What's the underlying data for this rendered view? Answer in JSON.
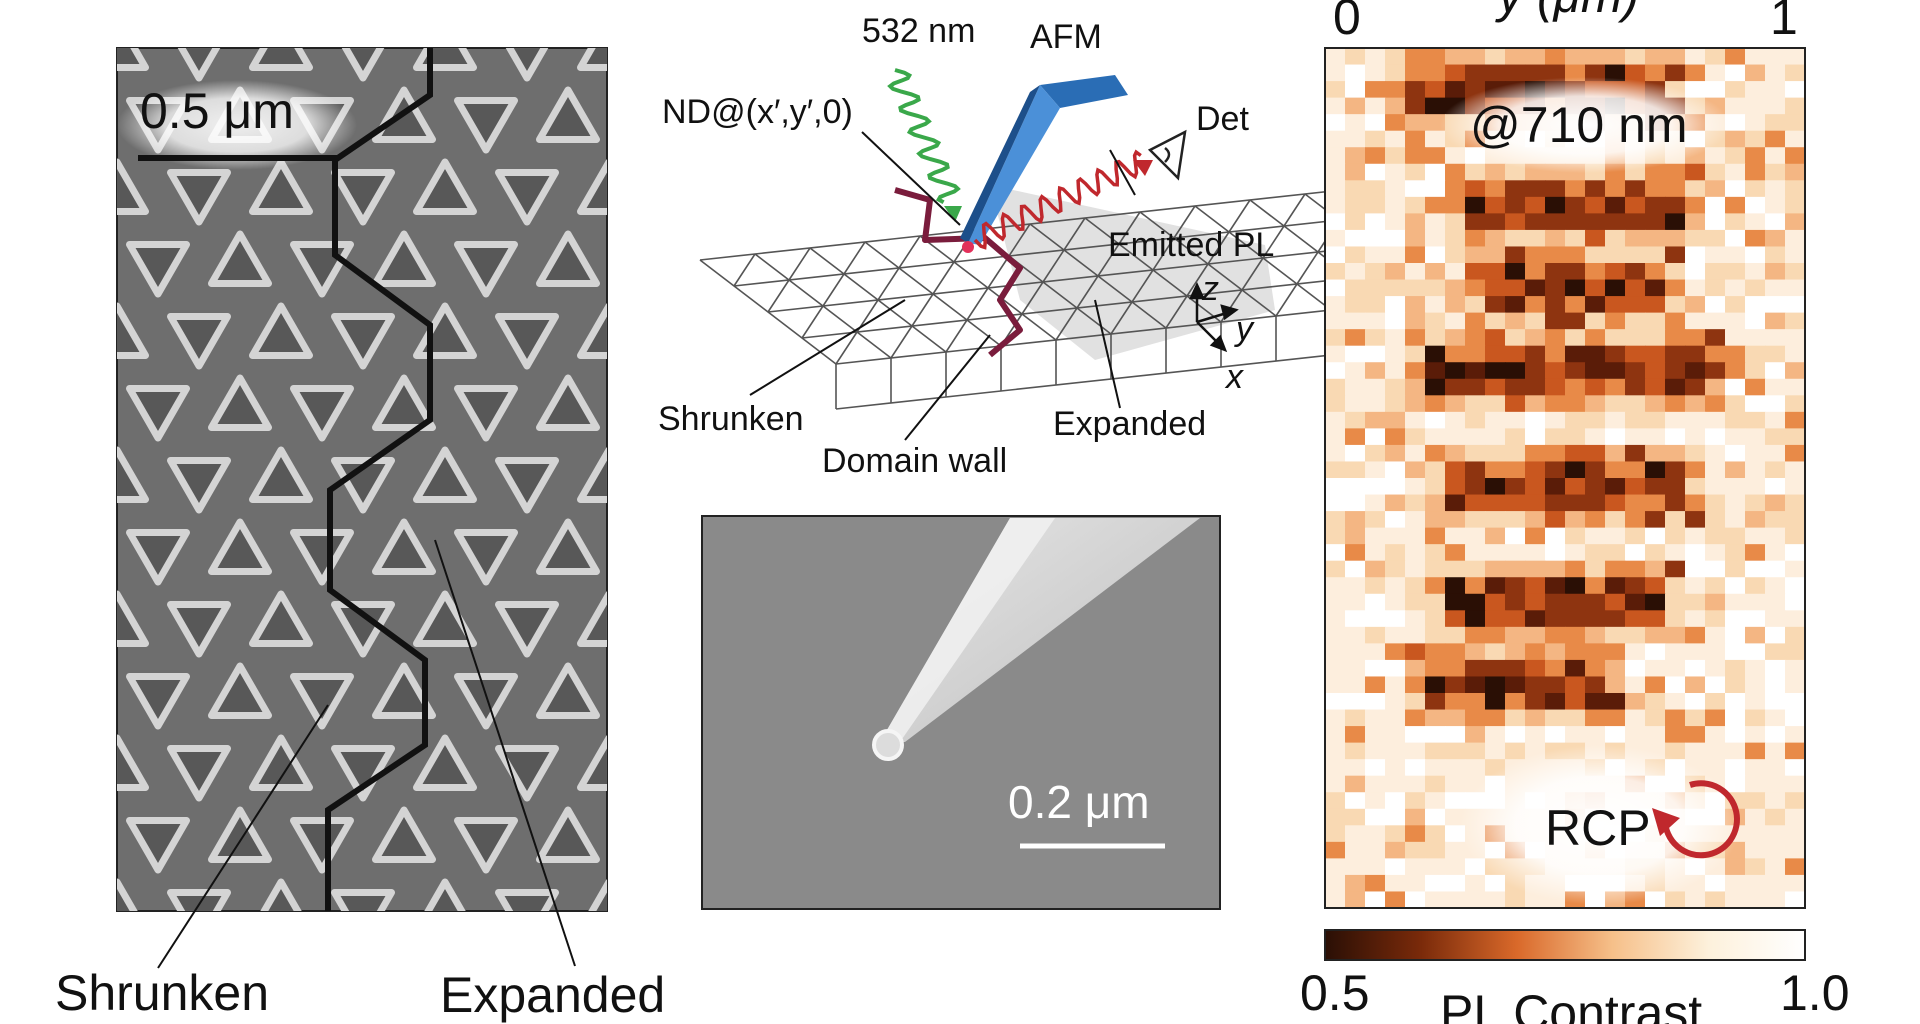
{
  "panel_a": {
    "scale_bar_label": "0.5 μm",
    "label_left": "Shrunken",
    "label_right": "Expanded"
  },
  "panel_b": {
    "wavelength_label": "532 nm",
    "afm_label": "AFM",
    "nd_label": "ND@(x′,y′,0)",
    "det_label": "Det",
    "emitted_label": "Emitted PL",
    "shrunken_label": "Shrunken",
    "domain_wall_label": "Domain wall",
    "expanded_label": "Expanded",
    "axis_z": "z",
    "axis_y": "y",
    "axis_x": "x",
    "colors": {
      "excitation": "#3aa84a",
      "emission": "#c0282d",
      "afm": "#2a6db5",
      "domain_wall": "#7a1c3c"
    }
  },
  "panel_c": {
    "scale_bar_label": "0.2 μm"
  },
  "panel_d": {
    "axis_label": "y (μm)",
    "axis_min": "0",
    "axis_max": "1",
    "wavelength_label": "@710 nm",
    "polarization_label": "RCP",
    "colorbar_min": "0.5",
    "colorbar_max": "1.0",
    "colorbar_label": "PL Contrast",
    "colorbar_colors": [
      "#2a0f05",
      "#7a2a0a",
      "#d9692a",
      "#f6c08a",
      "#fdf1dc",
      "#ffffff"
    ],
    "rcp_arrow_color": "#c0282d"
  }
}
